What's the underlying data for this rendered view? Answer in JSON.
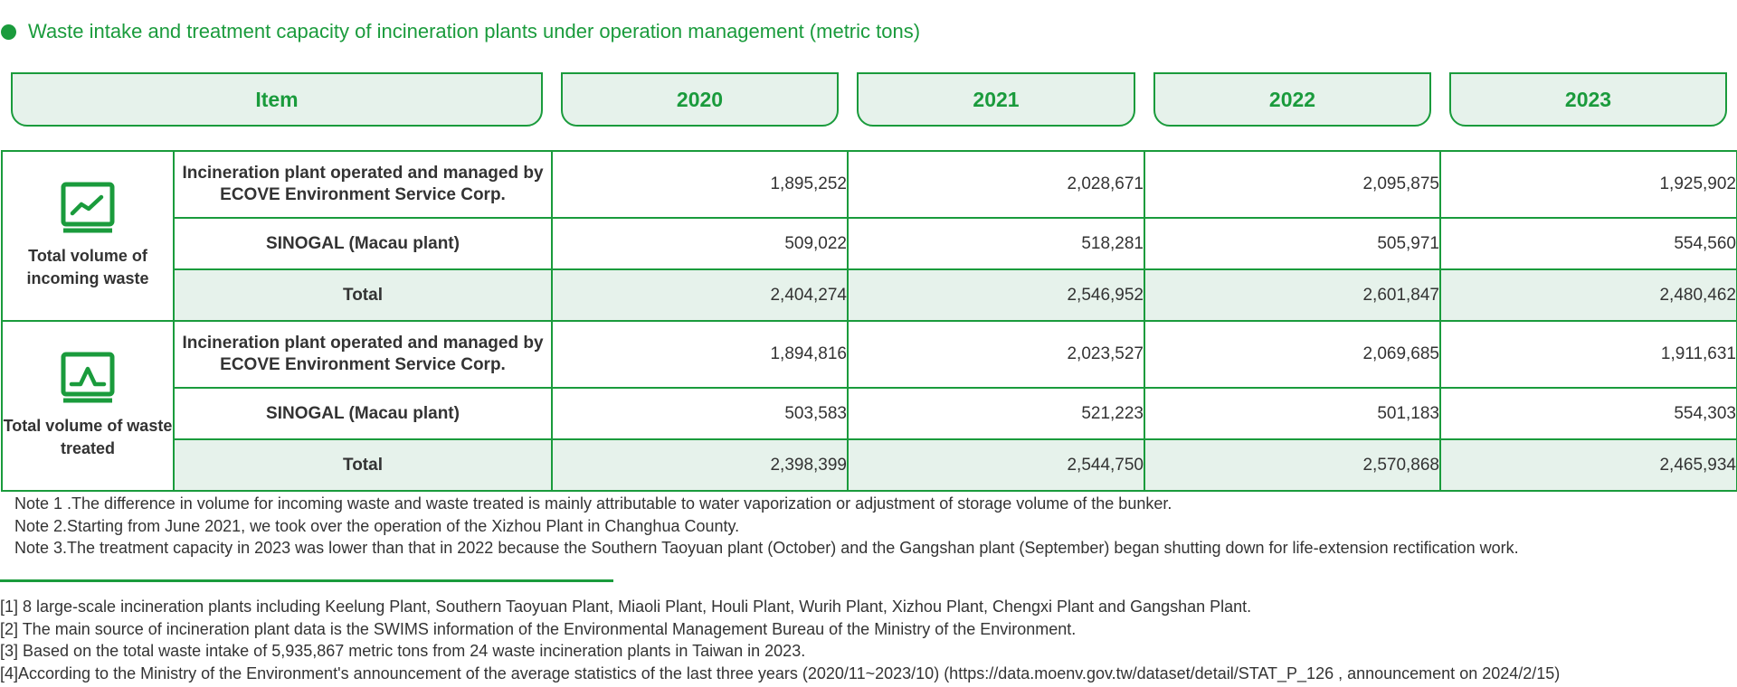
{
  "title": "Waste intake and treatment capacity of incineration plants under operation management (metric tons)",
  "colors": {
    "accent": "#1a9b3c",
    "light_fill": "#e6f2eb",
    "text": "#333333"
  },
  "header": {
    "item": "Item",
    "years": [
      "2020",
      "2021",
      "2022",
      "2023"
    ]
  },
  "groups": [
    {
      "label": "Total volume of incoming waste",
      "icon": "rising-chart-icon",
      "rows": [
        {
          "item": "Incineration plant operated and managed by ECOVE Environment Service Corp.",
          "values": [
            "1,895,252",
            "2,028,671",
            "2,095,875",
            "1,925,902"
          ]
        },
        {
          "item": "SINOGAL (Macau plant)",
          "values": [
            "509,022",
            "518,281",
            "505,971",
            "554,560"
          ]
        },
        {
          "item": "Total",
          "values": [
            "2,404,274",
            "2,546,952",
            "2,601,847",
            "2,480,462"
          ]
        }
      ]
    },
    {
      "label": "Total volume of waste treated",
      "icon": "peak-chart-icon",
      "rows": [
        {
          "item": "Incineration plant operated and managed by ECOVE Environment Service Corp.",
          "values": [
            "1,894,816",
            "2,023,527",
            "2,069,685",
            "1,911,631"
          ]
        },
        {
          "item": "SINOGAL (Macau plant)",
          "values": [
            "503,583",
            "521,223",
            "501,183",
            "554,303"
          ]
        },
        {
          "item": "Total",
          "values": [
            "2,398,399",
            "2,544,750",
            "2,570,868",
            "2,465,934"
          ]
        }
      ]
    }
  ],
  "notes": [
    "Note 1 .The difference in volume for incoming waste and waste treated is mainly attributable to water vaporization or adjustment of storage volume of the bunker.",
    "Note 2.Starting from June 2021, we took over the operation of the Xizhou Plant in Changhua County.",
    "Note 3.The treatment capacity in 2023 was lower than that in 2022 because the Southern Taoyuan plant (October) and the Gangshan plant (September) began shutting down for life-extension rectification work."
  ],
  "footnotes": [
    "[1] 8 large-scale incineration plants including Keelung Plant, Southern Taoyuan Plant, Miaoli Plant, Houli Plant, Wurih Plant, Xizhou Plant, Chengxi Plant and Gangshan Plant.",
    "[2] The main source of incineration plant data is the SWIMS information of the Environmental Management Bureau of the Ministry of the Environment.",
    "[3] Based on the total waste intake of 5,935,867 metric tons from 24 waste incineration plants in Taiwan in 2023.",
    "[4]According to the Ministry of the Environment's announcement of the average statistics of the last three years (2020/11~2023/10) (https://data.moenv.gov.tw/dataset/detail/STAT_P_126 , announcement on 2024/2/15)"
  ]
}
